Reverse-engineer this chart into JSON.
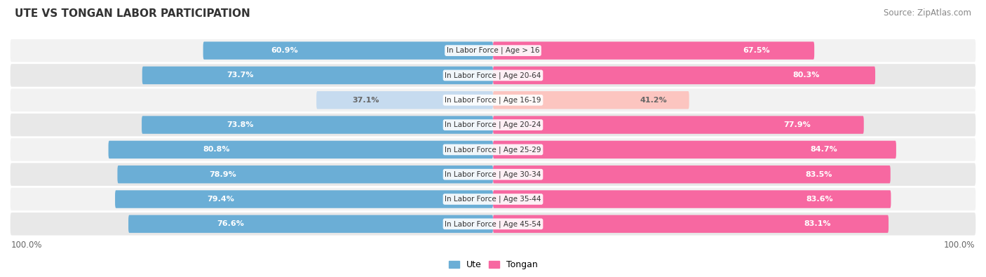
{
  "title": "UTE VS TONGAN LABOR PARTICIPATION",
  "source": "Source: ZipAtlas.com",
  "categories": [
    "In Labor Force | Age > 16",
    "In Labor Force | Age 20-64",
    "In Labor Force | Age 16-19",
    "In Labor Force | Age 20-24",
    "In Labor Force | Age 25-29",
    "In Labor Force | Age 30-34",
    "In Labor Force | Age 35-44",
    "In Labor Force | Age 45-54"
  ],
  "ute_values": [
    60.9,
    73.7,
    37.1,
    73.8,
    80.8,
    78.9,
    79.4,
    76.6
  ],
  "tongan_values": [
    67.5,
    80.3,
    41.2,
    77.9,
    84.7,
    83.5,
    83.6,
    83.1
  ],
  "ute_color": "#6baed6",
  "ute_color_light": "#c6dbef",
  "tongan_color": "#f768a1",
  "tongan_color_light": "#fcc5c0",
  "label_white": "#ffffff",
  "label_dark": "#666666",
  "row_bg_odd": "#f2f2f2",
  "row_bg_even": "#e8e8e8",
  "bar_height": 0.72,
  "max_val": 100,
  "legend_ute": "Ute",
  "legend_tongan": "Tongan",
  "background_color": "#ffffff",
  "title_fontsize": 11,
  "source_fontsize": 8.5,
  "bar_label_fontsize": 8,
  "category_fontsize": 7.5,
  "legend_fontsize": 9,
  "title_color": "#333333",
  "source_color": "#888888",
  "axis_label_color": "#666666",
  "category_label_color": "#333333",
  "center_label_bg": "#ffffff"
}
